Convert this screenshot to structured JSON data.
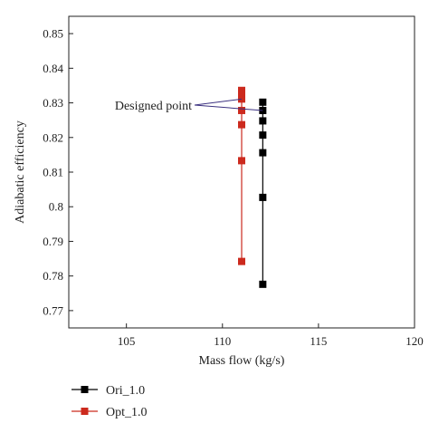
{
  "chart_data": {
    "type": "line",
    "xlabel": "Mass flow (kg/s)",
    "ylabel": "Adiabatic efficiency",
    "xlim": [
      102,
      120
    ],
    "ylim": [
      0.765,
      0.855
    ],
    "xticks": [
      105,
      110,
      115,
      120
    ],
    "yticks": [
      0.77,
      0.78,
      0.79,
      0.8,
      0.81,
      0.82,
      0.83,
      0.84,
      0.85
    ],
    "ytick_labels": [
      "0.77",
      "0.78",
      "0.79",
      "0.8",
      "0.81",
      "0.82",
      "0.83",
      "0.84",
      "0.85"
    ],
    "grid": false,
    "legend_position": "below plot, left",
    "series": [
      {
        "name": "Ori_1.0",
        "color": "#000000",
        "marker": "square",
        "points": [
          {
            "x": 112.1,
            "y": 0.7776
          },
          {
            "x": 112.1,
            "y": 0.8027
          },
          {
            "x": 112.1,
            "y": 0.8156
          },
          {
            "x": 112.1,
            "y": 0.8207
          },
          {
            "x": 112.1,
            "y": 0.8248
          },
          {
            "x": 112.1,
            "y": 0.8278
          },
          {
            "x": 112.1,
            "y": 0.8302
          }
        ]
      },
      {
        "name": "Opt_1.0",
        "color": "#cc2a1e",
        "marker": "square",
        "points": [
          {
            "x": 111.0,
            "y": 0.7842
          },
          {
            "x": 111.0,
            "y": 0.8133
          },
          {
            "x": 111.0,
            "y": 0.8237
          },
          {
            "x": 111.0,
            "y": 0.8278
          },
          {
            "x": 111.0,
            "y": 0.8311
          },
          {
            "x": 111.0,
            "y": 0.8325
          },
          {
            "x": 111.0,
            "y": 0.8336
          }
        ]
      }
    ],
    "annotations": [
      {
        "text": "Designed point",
        "targets": [
          {
            "x": 111.0,
            "y": 0.8311
          },
          {
            "x": 112.1,
            "y": 0.8278
          }
        ]
      }
    ]
  },
  "legend": {
    "items": [
      {
        "label": "Ori_1.0",
        "color": "#000000"
      },
      {
        "label": "Opt_1.0",
        "color": "#cc2a1e"
      }
    ]
  }
}
